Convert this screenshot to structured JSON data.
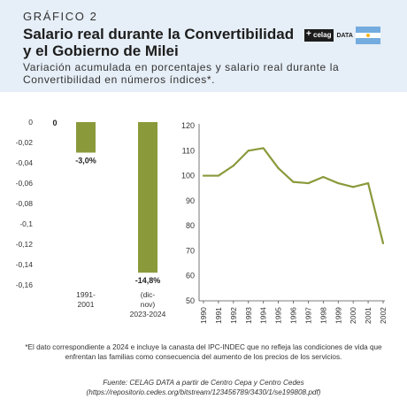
{
  "header": {
    "kicker": "GRÁFICO 2",
    "title": "Salario real durante la Convertibilidad y el Gobierno de Milei",
    "subtitle": "Variación acumulada en porcentajes y salario real durante la Convertibilidad en números índices*.",
    "logo_text": "celag",
    "logo_suffix": "DATA",
    "flag": "argentina-flag",
    "flag_colors": [
      "#74acdf",
      "#ffffff",
      "#f6b40e"
    ]
  },
  "colors": {
    "accent": "#8a9a3b",
    "background_header": "#e6eef7"
  },
  "chart_data": [
    {
      "type": "bar",
      "categories": [
        "1991-2001",
        "(dic-nov) 2023-2024"
      ],
      "values": [
        -0.03,
        -0.148
      ],
      "labels": [
        "-3,0%",
        "-14,8%"
      ],
      "zero_label": "0",
      "ylim": [
        -0.16,
        0
      ],
      "yticks": [
        "0",
        "-0,02",
        "-0,04",
        "-0,06",
        "-0,08",
        "-0,1",
        "-0,12",
        "-0,14",
        "-0,16"
      ],
      "grid": false
    },
    {
      "type": "line",
      "x": [
        "1990",
        "1991",
        "1992",
        "1993",
        "1994",
        "1995",
        "1996",
        "1997",
        "1998",
        "1999",
        "2000",
        "2001",
        "2002"
      ],
      "y": [
        100,
        100,
        104,
        110,
        111,
        103,
        97.5,
        97,
        99.5,
        97,
        95.5,
        97,
        73
      ],
      "ylim": [
        50,
        120
      ],
      "yticks": [
        "120",
        "110",
        "100",
        "90",
        "80",
        "70",
        "60",
        "50"
      ],
      "grid": false
    }
  ],
  "footnote": "*El dato correspondiente a 2024 e incluye la canasta del IPC-INDEC que no refleja las condiciones de vida que enfrentan las familias como consecuencia del aumento de los precios de los servicios.",
  "source": "Fuente: CELAG DATA a partir de Centro Cepa y Centro Cedes (https://repositorio.cedes.org/bitstream/123456789/3430/1/se199808.pdf)"
}
